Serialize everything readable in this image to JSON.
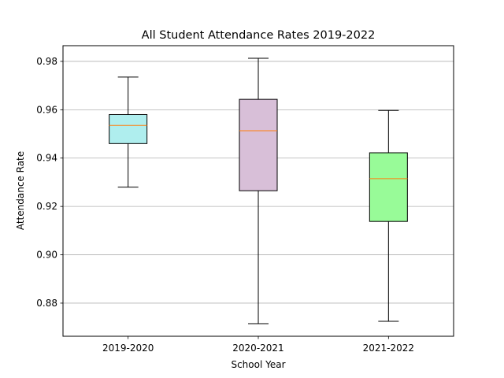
{
  "chart_data": {
    "type": "box",
    "title": "All Student Attendance Rates 2019-2022",
    "xlabel": "School Year",
    "ylabel": "Attendance Rate",
    "ylim": [
      0.8663,
      0.9865
    ],
    "yticks": [
      0.88,
      0.9,
      0.92,
      0.94,
      0.96,
      0.98
    ],
    "ytick_labels": [
      "0.88",
      "0.90",
      "0.92",
      "0.94",
      "0.96",
      "0.98"
    ],
    "grid": "horizontal",
    "categories": [
      "2019-2020",
      "2020-2021",
      "2021-2022"
    ],
    "boxes": [
      {
        "category": "2019-2020",
        "whisker_low": 0.928,
        "q1": 0.946,
        "median": 0.9535,
        "q3": 0.958,
        "whisker_high": 0.9735,
        "color": "#afeeee"
      },
      {
        "category": "2020-2021",
        "whisker_low": 0.8715,
        "q1": 0.9265,
        "median": 0.9513,
        "q3": 0.9643,
        "whisker_high": 0.9813,
        "color": "#d8bfd8"
      },
      {
        "category": "2021-2022",
        "whisker_low": 0.8725,
        "q1": 0.9138,
        "median": 0.9315,
        "q3": 0.9422,
        "whisker_high": 0.9597,
        "color": "#98fb98"
      }
    ],
    "median_color": "#ff7f0e",
    "grid_color": "#b0b0b0"
  }
}
